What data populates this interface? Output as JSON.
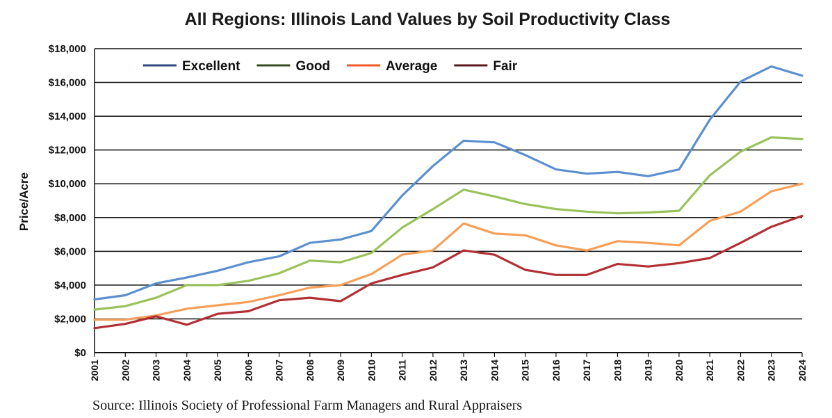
{
  "chart_data": {
    "type": "line",
    "title": "All Regions: Illinois Land Values by Soil Productivity Class",
    "xlabel": "",
    "ylabel": "Price/Acre",
    "ylim": [
      0,
      18000
    ],
    "y_ticks": [
      0,
      2000,
      4000,
      6000,
      8000,
      10000,
      12000,
      14000,
      16000,
      18000
    ],
    "y_tick_labels": [
      "$0",
      "$2,000",
      "$4,000",
      "$6,000",
      "$8,000",
      "$10,000",
      "$12,000",
      "$14,000",
      "$16,000",
      "$18,000"
    ],
    "grid": true,
    "legend_position": "top-left",
    "categories": [
      "2001",
      "2002",
      "2003",
      "2004",
      "2005",
      "2006",
      "2007",
      "2008",
      "2009",
      "2010",
      "2011",
      "2012",
      "2013",
      "2014",
      "2015",
      "2016",
      "2017",
      "2018",
      "2019",
      "2020",
      "2021",
      "2022",
      "2023",
      "2024"
    ],
    "series": [
      {
        "name": "Excellent",
        "color": "#5b8fd0",
        "legend_color": "#2e4a7d",
        "values": [
          3150,
          3400,
          4100,
          4450,
          4850,
          5350,
          5700,
          6500,
          6700,
          7200,
          9300,
          11050,
          12550,
          12450,
          11700,
          10850,
          10600,
          10700,
          10450,
          10850,
          13800,
          16050,
          16950,
          16400
        ]
      },
      {
        "name": "Good",
        "color": "#9ac25b",
        "legend_color": "#3a4a22",
        "values": [
          2550,
          2750,
          3250,
          4000,
          4000,
          4250,
          4700,
          5450,
          5350,
          5900,
          7400,
          8500,
          9650,
          9250,
          8800,
          8500,
          8350,
          8250,
          8300,
          8400,
          10500,
          11900,
          12750,
          12650
        ]
      },
      {
        "name": "Average",
        "color": "#f59f58",
        "legend_color": "#f2592a",
        "values": [
          1950,
          1950,
          2200,
          2600,
          2800,
          3000,
          3400,
          3850,
          4000,
          4650,
          5800,
          6050,
          7650,
          7050,
          6950,
          6350,
          6050,
          6600,
          6500,
          6350,
          7800,
          8350,
          9550,
          10000
        ]
      },
      {
        "name": "Fair",
        "color": "#b22f33",
        "legend_color": "#5a1a1e",
        "values": [
          1450,
          1700,
          2150,
          1650,
          2300,
          2450,
          3100,
          3250,
          3050,
          4100,
          4600,
          5050,
          6050,
          5800,
          4900,
          4600,
          4600,
          5250,
          5100,
          5300,
          5600,
          6500,
          7450,
          8100
        ]
      }
    ]
  },
  "source": "Source: Illinois Society of Professional Farm Managers and Rural Appraisers"
}
